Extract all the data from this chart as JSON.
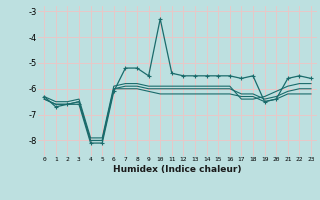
{
  "xlabel": "Humidex (Indice chaleur)",
  "x": [
    0,
    1,
    2,
    3,
    4,
    5,
    6,
    7,
    8,
    9,
    10,
    11,
    12,
    13,
    14,
    15,
    16,
    17,
    18,
    19,
    20,
    21,
    22,
    23
  ],
  "line1": [
    -6.3,
    -6.7,
    -6.6,
    -6.6,
    -8.1,
    -8.1,
    -6.1,
    -5.2,
    -5.2,
    -5.5,
    -3.3,
    -5.4,
    -5.5,
    -5.5,
    -5.5,
    -5.5,
    -5.5,
    -5.6,
    -5.5,
    -6.5,
    -6.4,
    -5.6,
    -5.5,
    -5.6
  ],
  "line2": [
    -6.4,
    -6.6,
    -6.6,
    -6.5,
    -8.0,
    -8.0,
    -6.0,
    -6.0,
    -6.0,
    -6.1,
    -6.2,
    -6.2,
    -6.2,
    -6.2,
    -6.2,
    -6.2,
    -6.2,
    -6.3,
    -6.3,
    -6.5,
    -6.4,
    -6.2,
    -6.2,
    -6.2
  ],
  "line3": [
    -6.4,
    -6.6,
    -6.6,
    -6.5,
    -8.0,
    -8.0,
    -6.0,
    -5.9,
    -5.9,
    -6.0,
    -6.0,
    -6.0,
    -6.0,
    -6.0,
    -6.0,
    -6.0,
    -6.0,
    -6.2,
    -6.2,
    -6.4,
    -6.3,
    -6.1,
    -6.0,
    -6.0
  ],
  "line4": [
    -6.3,
    -6.5,
    -6.5,
    -6.4,
    -7.9,
    -7.9,
    -5.9,
    -5.8,
    -5.8,
    -5.9,
    -5.9,
    -5.9,
    -5.9,
    -5.9,
    -5.9,
    -5.9,
    -5.9,
    -6.4,
    -6.4,
    -6.3,
    -6.1,
    -5.9,
    -5.8,
    -5.8
  ],
  "ylim": [
    -8.6,
    -2.8
  ],
  "xlim": [
    -0.5,
    23.5
  ],
  "yticks": [
    -8,
    -7,
    -6,
    -5,
    -4,
    -3
  ],
  "xticks": [
    0,
    1,
    2,
    3,
    4,
    5,
    6,
    7,
    8,
    9,
    10,
    11,
    12,
    13,
    14,
    15,
    16,
    17,
    18,
    19,
    20,
    21,
    22,
    23
  ],
  "bg_color": "#bde0e0",
  "line_color": "#1a6b6b",
  "grid_color": "#e8c8c8"
}
